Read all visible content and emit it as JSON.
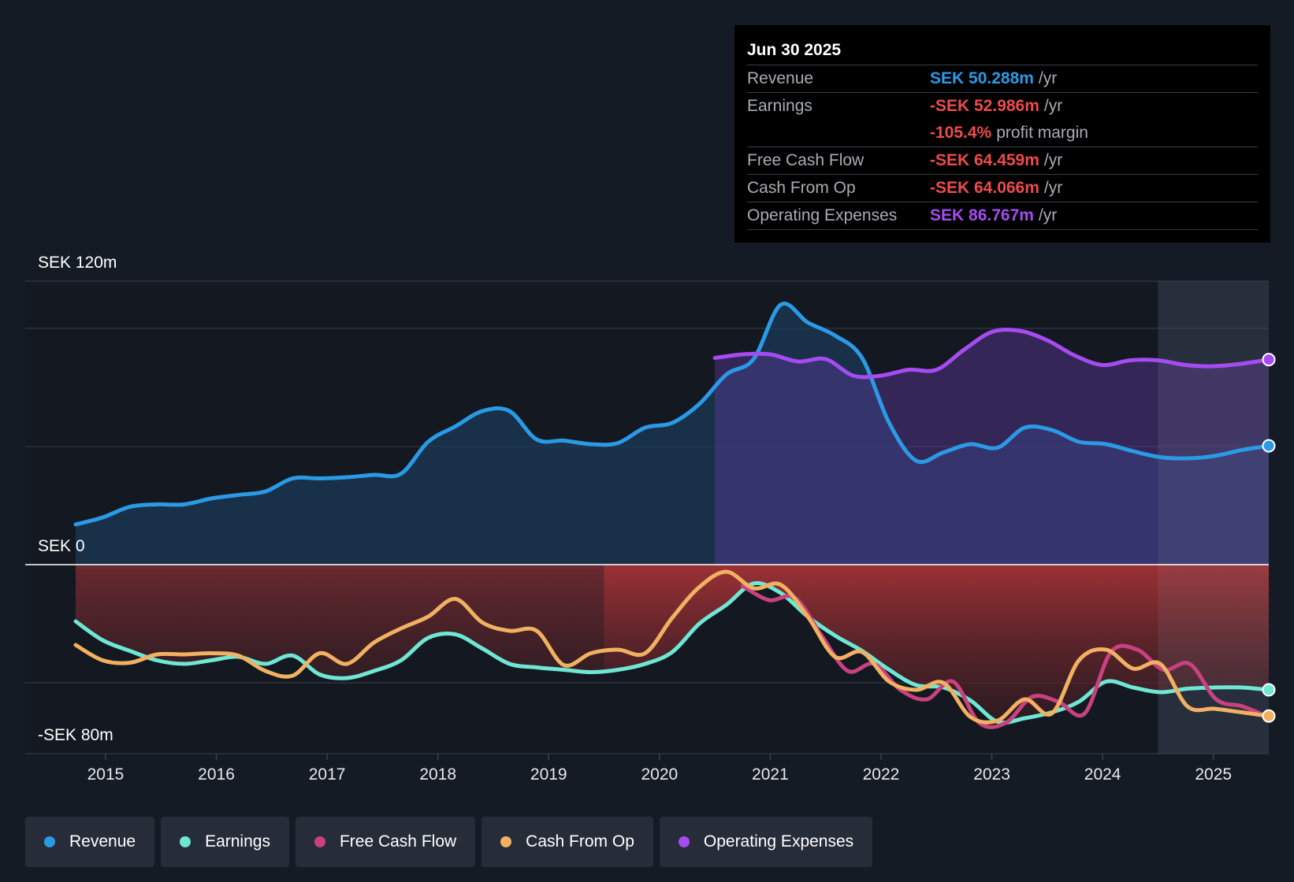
{
  "tooltip": {
    "date": "Jun 30 2025",
    "rows": [
      {
        "label": "Revenue",
        "value": "SEK 50.288m",
        "unit": "/yr",
        "color": "#2a9ae6"
      },
      {
        "label": "Earnings",
        "value": "-SEK 52.986m",
        "unit": "/yr",
        "color": "#ee4b4b"
      },
      {
        "label": "",
        "value": "-105.4%",
        "unit": "profit margin",
        "color": "#ee4b4b"
      },
      {
        "label": "Free Cash Flow",
        "value": "-SEK 64.459m",
        "unit": "/yr",
        "color": "#ee4b4b"
      },
      {
        "label": "Cash From Op",
        "value": "-SEK 64.066m",
        "unit": "/yr",
        "color": "#ee4b4b"
      },
      {
        "label": "Operating Expenses",
        "value": "SEK 86.767m",
        "unit": "/yr",
        "color": "#a64bf2"
      }
    ]
  },
  "legend": [
    {
      "label": "Revenue",
      "color": "#2a9ae6"
    },
    {
      "label": "Earnings",
      "color": "#6ee7d5"
    },
    {
      "label": "Free Cash Flow",
      "color": "#c9417f"
    },
    {
      "label": "Cash From Op",
      "color": "#f2b160"
    },
    {
      "label": "Operating Expenses",
      "color": "#a64bf2"
    }
  ],
  "chart_data": {
    "type": "line",
    "title": "",
    "xlabel": "",
    "ylabel": "",
    "y_top_label": "SEK 120m",
    "y_zero_label": "SEK 0",
    "y_bottom_label": "-SEK 80m",
    "ylim": [
      -80,
      120
    ],
    "xlim": [
      2014.73,
      2025.5
    ],
    "x_ticks": [
      2015,
      2016,
      2017,
      2018,
      2019,
      2020,
      2021,
      2022,
      2023,
      2024,
      2025
    ],
    "x_tick_labels": [
      "2015",
      "2016",
      "2017",
      "2018",
      "2019",
      "2020",
      "2021",
      "2022",
      "2023",
      "2024",
      "2025"
    ],
    "gridlines_y": [
      120,
      100,
      50,
      -50
    ],
    "forecast_start": 2024.5,
    "negative_band_bright_start": 2019.5,
    "series": [
      {
        "name": "Revenue",
        "color": "#2a9ae6",
        "x_start": 2014.73,
        "x_end": 2025.5,
        "values": [
          17.0,
          20.0,
          24.5,
          25.5,
          25.5,
          28.0,
          29.5,
          31.0,
          36.5,
          36.5,
          37.0,
          38.0,
          38.5,
          52.0,
          58.5,
          65.0,
          65.0,
          53.0,
          52.5,
          51.0,
          51.5,
          58.0,
          60.0,
          68.0,
          80.5,
          87.0,
          110.0,
          102.5,
          97.0,
          87.5,
          60.0,
          44.0,
          47.5,
          51.0,
          49.5,
          58.0,
          57.0,
          52.0,
          51.0,
          48.0,
          45.5,
          45.0,
          46.0,
          48.5,
          50.3
        ]
      },
      {
        "name": "Earnings",
        "color": "#6ee7d5",
        "x_start": 2014.73,
        "x_end": 2025.5,
        "values": [
          -24.0,
          -32.0,
          -36.5,
          -40.5,
          -42.0,
          -40.5,
          -39.0,
          -42.0,
          -38.5,
          -46.5,
          -48.0,
          -45.0,
          -40.5,
          -31.0,
          -29.5,
          -35.5,
          -42.0,
          -43.5,
          -44.5,
          -45.5,
          -44.5,
          -42.0,
          -37.0,
          -25.0,
          -17.0,
          -8.0,
          -12.0,
          -22.0,
          -30.0,
          -36.5,
          -44.5,
          -51.0,
          -52.0,
          -57.5,
          -66.5,
          -65.0,
          -62.5,
          -58.0,
          -49.5,
          -52.0,
          -54.0,
          -52.5,
          -52.0,
          -52.0,
          -53.0
        ]
      },
      {
        "name": "Free Cash Flow",
        "color": "#c9417f",
        "x_start": 2020.75,
        "x_end": 2025.5,
        "values": [
          -9.0,
          -15.0,
          -14.0,
          -30.0,
          -45.0,
          -42.0,
          -53.0,
          -57.0,
          -49.5,
          -67.0,
          -67.0,
          -56.0,
          -58.0,
          -63.0,
          -37.0,
          -36.0,
          -44.5,
          -42.0,
          -57.0,
          -60.0,
          -64.5
        ]
      },
      {
        "name": "Cash From Op",
        "color": "#f2b160",
        "x_start": 2014.73,
        "x_end": 2025.5,
        "values": [
          -34.0,
          -40.5,
          -41.5,
          -38.0,
          -38.0,
          -37.5,
          -38.5,
          -45.0,
          -47.0,
          -37.5,
          -42.0,
          -33.0,
          -27.0,
          -22.0,
          -14.5,
          -24.5,
          -28.0,
          -28.0,
          -42.5,
          -37.5,
          -36.0,
          -37.5,
          -22.5,
          -9.5,
          -3.0,
          -10.0,
          -8.5,
          -22.0,
          -39.0,
          -37.0,
          -49.5,
          -53.0,
          -50.0,
          -64.5,
          -66.0,
          -57.0,
          -63.0,
          -40.5,
          -36.0,
          -44.0,
          -42.0,
          -60.0,
          -61.0,
          -62.5,
          -64.1
        ]
      },
      {
        "name": "Operating Expenses",
        "color": "#a64bf2",
        "x_start": 2020.5,
        "x_end": 2025.5,
        "values": [
          87.5,
          89.0,
          89.0,
          86.0,
          87.0,
          80.0,
          80.0,
          82.5,
          82.5,
          91.0,
          98.5,
          99.0,
          95.0,
          88.5,
          84.5,
          86.5,
          86.5,
          84.5,
          84.0,
          85.0,
          86.8
        ]
      }
    ]
  }
}
